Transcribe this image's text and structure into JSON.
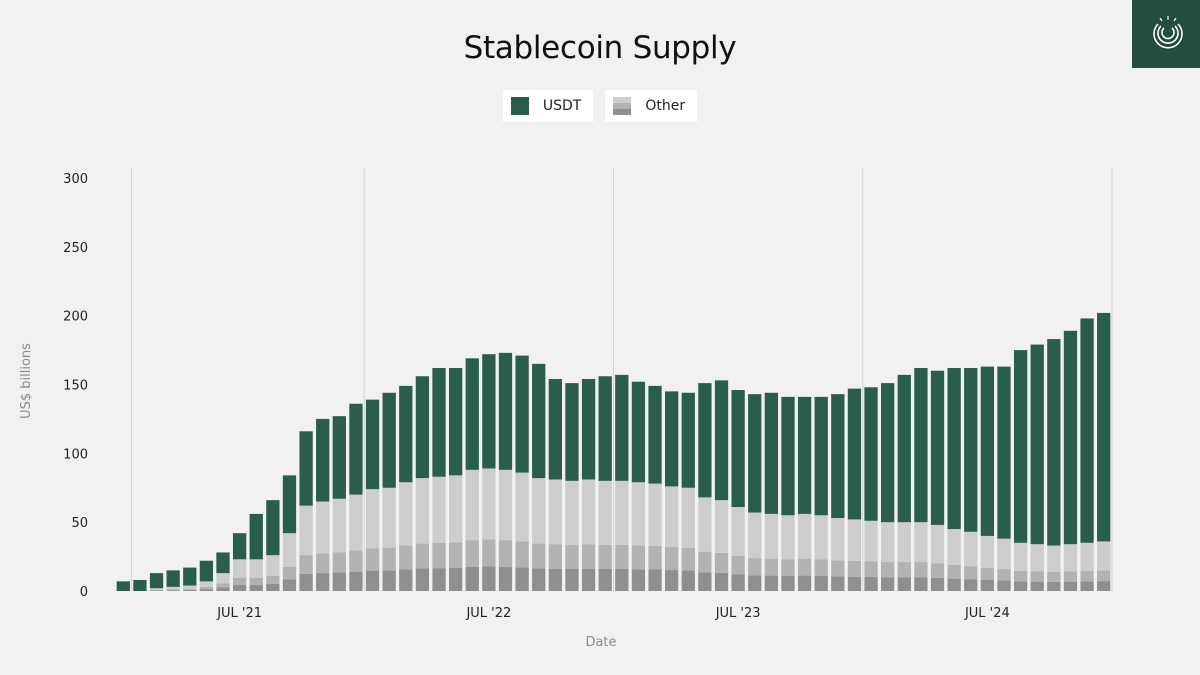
{
  "chart_data": {
    "type": "bar",
    "stacked": true,
    "title": "Stablecoin Supply",
    "xlabel": "Date",
    "ylabel": "US$ billions",
    "ylim": [
      0,
      300
    ],
    "yticks": [
      0,
      50,
      100,
      150,
      200,
      250,
      300
    ],
    "x_tick_labels": [
      {
        "label": "JUL '21",
        "index": 7
      },
      {
        "label": "JUL '22",
        "index": 22
      },
      {
        "label": "JUL '23",
        "index": 37
      },
      {
        "label": "JUL '24",
        "index": 52
      }
    ],
    "vertical_gridlines_after_index": [
      0,
      14,
      29,
      44,
      59
    ],
    "grid": true,
    "legend": {
      "placement": "top-center",
      "entries": [
        "USDT",
        "Other"
      ]
    },
    "colors": {
      "USDT": "#2b5d4e",
      "other_layers": [
        "#8f8f8f",
        "#b2b2b2",
        "#cdcdcd"
      ]
    },
    "num_bars": 60,
    "series": [
      {
        "name": "USDT",
        "values": [
          7,
          8,
          11,
          12,
          13,
          15,
          15,
          19,
          33,
          40,
          42,
          54,
          60,
          60,
          66,
          65,
          69,
          70,
          74,
          79,
          78,
          81,
          83,
          85,
          85,
          83,
          73,
          71,
          73,
          76,
          77,
          73,
          71,
          69,
          69,
          83,
          87,
          85,
          86,
          88,
          86,
          85,
          86,
          90,
          95,
          97,
          101,
          107,
          112,
          112,
          117,
          119,
          123,
          125,
          140,
          145,
          150,
          155,
          163,
          166
        ]
      },
      {
        "name": "Other",
        "values": [
          0,
          0,
          2,
          3,
          4,
          7,
          13,
          23,
          23,
          26,
          42,
          62,
          65,
          67,
          70,
          74,
          75,
          79,
          82,
          83,
          84,
          88,
          89,
          88,
          86,
          82,
          81,
          80,
          81,
          80,
          80,
          79,
          78,
          76,
          75,
          68,
          66,
          61,
          57,
          56,
          55,
          56,
          55,
          53,
          52,
          51,
          50,
          50,
          50,
          48,
          45,
          43,
          40,
          38,
          35,
          34,
          33,
          34,
          35,
          36
        ]
      }
    ]
  }
}
